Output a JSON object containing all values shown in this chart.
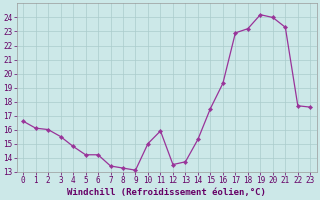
{
  "x": [
    0,
    1,
    2,
    3,
    4,
    5,
    6,
    7,
    8,
    9,
    10,
    11,
    12,
    13,
    14,
    15,
    16,
    17,
    18,
    19,
    20,
    21,
    22,
    23
  ],
  "y": [
    16.6,
    16.1,
    16.0,
    15.5,
    14.8,
    14.2,
    14.2,
    13.4,
    13.25,
    13.1,
    15.0,
    15.9,
    13.5,
    13.7,
    15.3,
    17.5,
    19.3,
    22.9,
    23.2,
    24.2,
    24.0,
    23.3,
    17.7,
    17.6
  ],
  "line_color": "#993399",
  "marker_color": "#993399",
  "bg_color": "#cce8e8",
  "grid_color": "#aacccc",
  "xlabel": "Windchill (Refroidissement éolien,°C)",
  "ylim": [
    13,
    25
  ],
  "xlim": [
    -0.5,
    23.5
  ],
  "yticks": [
    13,
    14,
    15,
    16,
    17,
    18,
    19,
    20,
    21,
    22,
    23,
    24
  ],
  "xticks": [
    0,
    1,
    2,
    3,
    4,
    5,
    6,
    7,
    8,
    9,
    10,
    11,
    12,
    13,
    14,
    15,
    16,
    17,
    18,
    19,
    20,
    21,
    22,
    23
  ],
  "tick_fontsize": 5.5,
  "xlabel_fontsize": 6.5
}
